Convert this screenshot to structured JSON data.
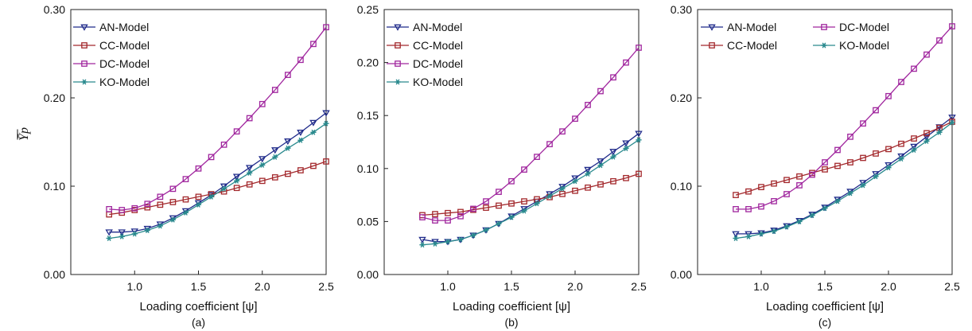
{
  "chart_data": [
    {
      "type": "line",
      "panel_label": "(a)",
      "xlabel": "Loading coefficient [ψ]",
      "ylabel": "Ȳ_p",
      "xlim": [
        0.5,
        2.5
      ],
      "ylim": [
        0.0,
        0.3
      ],
      "xticks": [
        1.0,
        1.5,
        2.0,
        2.5
      ],
      "xtick_labels": [
        "1.0",
        "1.5",
        "2.0",
        "2.5"
      ],
      "yticks": [
        0.0,
        0.1,
        0.2,
        0.3
      ],
      "ytick_labels": [
        "0.00",
        "0.10",
        "0.20",
        "0.30"
      ],
      "legend": {
        "placement": "top-left",
        "columns": 1
      },
      "x": [
        0.8,
        0.9,
        1.0,
        1.1,
        1.2,
        1.3,
        1.4,
        1.5,
        1.6,
        1.7,
        1.8,
        1.9,
        2.0,
        2.1,
        2.2,
        2.3,
        2.4,
        2.5
      ],
      "series": [
        {
          "name": "AN-Model",
          "color": "#1f2a8a",
          "marker": "triangle-down",
          "values": [
            0.048,
            0.048,
            0.049,
            0.052,
            0.057,
            0.064,
            0.072,
            0.081,
            0.09,
            0.1,
            0.111,
            0.121,
            0.131,
            0.141,
            0.151,
            0.161,
            0.172,
            0.183
          ]
        },
        {
          "name": "CC-Model",
          "color": "#a3282c",
          "marker": "square",
          "values": [
            0.068,
            0.07,
            0.073,
            0.076,
            0.079,
            0.082,
            0.085,
            0.088,
            0.091,
            0.094,
            0.098,
            0.102,
            0.106,
            0.11,
            0.114,
            0.118,
            0.123,
            0.128
          ]
        },
        {
          "name": "DC-Model",
          "color": "#a0269e",
          "marker": "square",
          "values": [
            0.074,
            0.073,
            0.075,
            0.08,
            0.088,
            0.097,
            0.108,
            0.12,
            0.133,
            0.147,
            0.162,
            0.177,
            0.193,
            0.209,
            0.226,
            0.243,
            0.261,
            0.28
          ]
        },
        {
          "name": "KO-Model",
          "color": "#2a8a8e",
          "marker": "asterisk",
          "values": [
            0.041,
            0.043,
            0.046,
            0.05,
            0.055,
            0.062,
            0.07,
            0.079,
            0.088,
            0.097,
            0.106,
            0.115,
            0.124,
            0.133,
            0.143,
            0.152,
            0.161,
            0.171
          ]
        }
      ]
    },
    {
      "type": "line",
      "panel_label": "(b)",
      "xlabel": "Loading coefficient [ψ]",
      "ylabel": "",
      "xlim": [
        0.5,
        2.5
      ],
      "ylim": [
        0.0,
        0.25
      ],
      "xticks": [
        1.0,
        1.5,
        2.0,
        2.5
      ],
      "xtick_labels": [
        "1.0",
        "1.5",
        "2.0",
        "2.5"
      ],
      "yticks": [
        0.0,
        0.05,
        0.1,
        0.15,
        0.2,
        0.25
      ],
      "ytick_labels": [
        "0.00",
        "0.05",
        "0.10",
        "0.15",
        "0.20",
        "0.25"
      ],
      "legend": {
        "placement": "top-left",
        "columns": 1
      },
      "x": [
        0.8,
        0.9,
        1.0,
        1.1,
        1.2,
        1.3,
        1.4,
        1.5,
        1.6,
        1.7,
        1.8,
        1.9,
        2.0,
        2.1,
        2.2,
        2.3,
        2.4,
        2.5
      ],
      "series": [
        {
          "name": "AN-Model",
          "color": "#1f2a8a",
          "marker": "triangle-down",
          "values": [
            0.033,
            0.031,
            0.031,
            0.033,
            0.037,
            0.042,
            0.048,
            0.055,
            0.062,
            0.069,
            0.076,
            0.083,
            0.091,
            0.099,
            0.107,
            0.116,
            0.124,
            0.133
          ]
        },
        {
          "name": "CC-Model",
          "color": "#a3282c",
          "marker": "square",
          "values": [
            0.056,
            0.057,
            0.058,
            0.059,
            0.061,
            0.063,
            0.065,
            0.067,
            0.069,
            0.071,
            0.073,
            0.076,
            0.079,
            0.082,
            0.085,
            0.088,
            0.091,
            0.095
          ]
        },
        {
          "name": "DC-Model",
          "color": "#a0269e",
          "marker": "square",
          "values": [
            0.054,
            0.051,
            0.051,
            0.055,
            0.062,
            0.069,
            0.078,
            0.088,
            0.099,
            0.111,
            0.123,
            0.135,
            0.147,
            0.16,
            0.173,
            0.186,
            0.2,
            0.214
          ]
        },
        {
          "name": "KO-Model",
          "color": "#2a8a8e",
          "marker": "asterisk",
          "values": [
            0.028,
            0.029,
            0.031,
            0.033,
            0.037,
            0.042,
            0.048,
            0.054,
            0.06,
            0.067,
            0.074,
            0.081,
            0.088,
            0.095,
            0.103,
            0.111,
            0.119,
            0.127
          ]
        }
      ]
    },
    {
      "type": "line",
      "panel_label": "(c)",
      "xlabel": "Loading coefficient [ψ]",
      "ylabel": "",
      "xlim": [
        0.5,
        2.5
      ],
      "ylim": [
        0.0,
        0.3
      ],
      "xticks": [
        1.0,
        1.5,
        2.0,
        2.5
      ],
      "xtick_labels": [
        "1.0",
        "1.5",
        "2.0",
        "2.5"
      ],
      "yticks": [
        0.0,
        0.1,
        0.2,
        0.3
      ],
      "ytick_labels": [
        "0.00",
        "0.10",
        "0.20",
        "0.30"
      ],
      "legend": {
        "placement": "top-left",
        "columns": 2
      },
      "x": [
        0.8,
        0.9,
        1.0,
        1.1,
        1.2,
        1.3,
        1.4,
        1.5,
        1.6,
        1.7,
        1.8,
        1.9,
        2.0,
        2.1,
        2.2,
        2.3,
        2.4,
        2.5
      ],
      "series": [
        {
          "name": "AN-Model",
          "color": "#1f2a8a",
          "marker": "triangle-down",
          "values": [
            0.046,
            0.046,
            0.047,
            0.05,
            0.055,
            0.061,
            0.068,
            0.076,
            0.085,
            0.094,
            0.104,
            0.114,
            0.124,
            0.134,
            0.145,
            0.156,
            0.167,
            0.178
          ]
        },
        {
          "name": "CC-Model",
          "color": "#a3282c",
          "marker": "square",
          "values": [
            0.09,
            0.094,
            0.099,
            0.103,
            0.107,
            0.111,
            0.115,
            0.119,
            0.123,
            0.127,
            0.132,
            0.137,
            0.142,
            0.148,
            0.154,
            0.16,
            0.166,
            0.173
          ]
        },
        {
          "name": "DC-Model",
          "color": "#a0269e",
          "marker": "square",
          "values": [
            0.074,
            0.074,
            0.077,
            0.083,
            0.091,
            0.101,
            0.113,
            0.127,
            0.141,
            0.156,
            0.171,
            0.186,
            0.202,
            0.218,
            0.233,
            0.249,
            0.265,
            0.281
          ]
        },
        {
          "name": "KO-Model",
          "color": "#2a8a8e",
          "marker": "asterisk",
          "values": [
            0.041,
            0.043,
            0.046,
            0.049,
            0.054,
            0.06,
            0.067,
            0.075,
            0.083,
            0.092,
            0.101,
            0.111,
            0.121,
            0.131,
            0.141,
            0.151,
            0.161,
            0.172
          ]
        }
      ]
    }
  ]
}
